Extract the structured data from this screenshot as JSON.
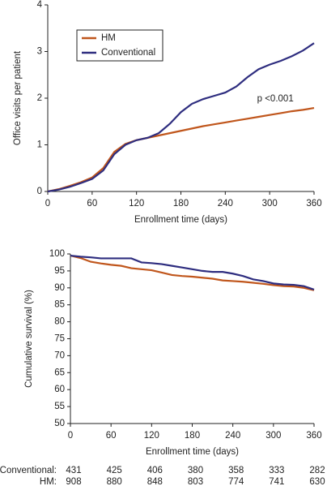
{
  "chart_data": [
    {
      "type": "line",
      "xlabel": "Enrollment time (days)",
      "ylabel": "Office visits per patient",
      "x": [
        0,
        15,
        30,
        45,
        60,
        75,
        90,
        105,
        120,
        135,
        150,
        165,
        180,
        195,
        210,
        225,
        240,
        255,
        270,
        285,
        300,
        315,
        330,
        345,
        360
      ],
      "series": [
        {
          "name": "HM",
          "color": "#c0561c",
          "values": [
            0,
            0.05,
            0.12,
            0.2,
            0.3,
            0.5,
            0.85,
            1.02,
            1.1,
            1.15,
            1.2,
            1.25,
            1.3,
            1.35,
            1.4,
            1.44,
            1.48,
            1.52,
            1.56,
            1.6,
            1.64,
            1.68,
            1.72,
            1.75,
            1.79
          ]
        },
        {
          "name": "Conventional",
          "color": "#2e2d7f",
          "values": [
            0,
            0.04,
            0.1,
            0.18,
            0.27,
            0.45,
            0.8,
            1.0,
            1.1,
            1.15,
            1.25,
            1.45,
            1.7,
            1.88,
            1.98,
            2.05,
            2.12,
            2.25,
            2.45,
            2.62,
            2.72,
            2.8,
            2.9,
            3.02,
            3.18
          ]
        }
      ],
      "xlim": [
        0,
        360
      ],
      "xticks": [
        0,
        60,
        120,
        180,
        240,
        300,
        360
      ],
      "ylim": [
        0,
        4
      ],
      "yticks": [
        0,
        1,
        2,
        3,
        4
      ],
      "legend": "upper left",
      "annotations": [
        {
          "text": "p <0.001",
          "x": 283,
          "y": 1.98
        }
      ]
    },
    {
      "type": "line",
      "xlabel": "Enrollment time (days)",
      "ylabel": "Cumulative survival (%)",
      "x": [
        0,
        15,
        30,
        45,
        60,
        75,
        90,
        105,
        120,
        135,
        150,
        165,
        180,
        195,
        210,
        225,
        240,
        255,
        270,
        285,
        300,
        315,
        330,
        345,
        360
      ],
      "series": [
        {
          "name": "HM",
          "color": "#c0561c",
          "values": [
            99.5,
            98.8,
            97.7,
            97.2,
            96.8,
            96.5,
            95.8,
            95.5,
            95.2,
            94.5,
            93.8,
            93.5,
            93.3,
            93,
            92.7,
            92.2,
            92,
            91.8,
            91.5,
            91.2,
            90.8,
            90.5,
            90.4,
            90,
            89.3
          ]
        },
        {
          "name": "Conventional",
          "color": "#2e2d7f",
          "values": [
            99.5,
            99.2,
            99,
            98.7,
            98.7,
            98.7,
            98.7,
            97.5,
            97.3,
            97,
            96.5,
            96,
            95.5,
            95,
            94.7,
            94.7,
            94.2,
            93.5,
            92.5,
            92,
            91.3,
            91,
            90.9,
            90.5,
            89.5
          ]
        }
      ],
      "xlim": [
        0,
        360
      ],
      "xticks": [
        0,
        60,
        120,
        180,
        240,
        300,
        360
      ],
      "ylim": [
        50,
        100
      ],
      "yticks": [
        50,
        55,
        60,
        65,
        70,
        75,
        80,
        85,
        90,
        95,
        100
      ]
    }
  ],
  "risk_table": {
    "rows": [
      {
        "label": "Conventional:",
        "values": [
          "431",
          "425",
          "406",
          "380",
          "358",
          "333",
          "282"
        ]
      },
      {
        "label": "HM:",
        "values": [
          "908",
          "880",
          "848",
          "803",
          "774",
          "741",
          "630"
        ]
      }
    ]
  }
}
